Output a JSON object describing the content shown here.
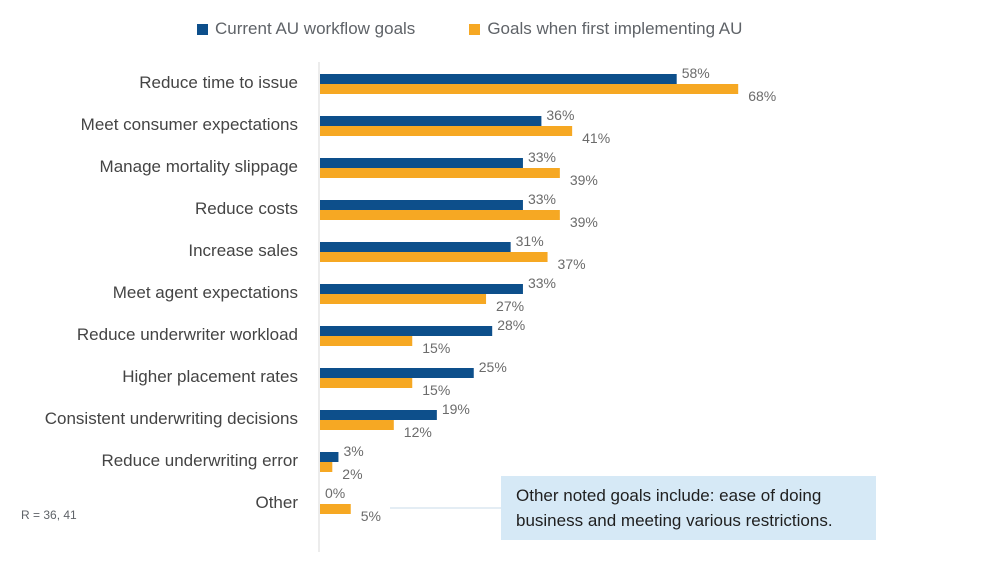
{
  "legend": {
    "series1": "Current AU workflow goals",
    "series2": "Goals when first implementing AU"
  },
  "colors": {
    "series1": "#0d4f8b",
    "series2": "#f6a823"
  },
  "note": "Other noted goals include:  ease of doing business and meeting various restrictions.",
  "sample_size": "R = 36, 41",
  "chart_data": {
    "type": "bar",
    "orientation": "horizontal",
    "categories": [
      "Reduce time to issue",
      "Meet consumer expectations",
      "Manage mortality slippage",
      "Reduce costs",
      "Increase sales",
      "Meet agent expectations",
      "Reduce underwriter workload",
      "Higher placement rates",
      "Consistent underwriting decisions",
      "Reduce underwriting error",
      "Other"
    ],
    "series": [
      {
        "name": "Current AU workflow goals",
        "values": [
          58,
          36,
          33,
          33,
          31,
          33,
          28,
          25,
          19,
          3,
          0
        ]
      },
      {
        "name": "Goals when first implementing AU",
        "values": [
          68,
          41,
          39,
          39,
          37,
          27,
          15,
          15,
          12,
          2,
          5
        ]
      }
    ],
    "data_labels": [
      [
        "58%",
        "36%",
        "33%",
        "33%",
        "31%",
        "33%",
        "28%",
        "25%",
        "19%",
        "3%",
        "0%"
      ],
      [
        "68%",
        "41%",
        "39%",
        "39%",
        "37%",
        "27%",
        "15%",
        "15%",
        "12%",
        "2%",
        "5%"
      ]
    ],
    "legend_position": "top"
  }
}
